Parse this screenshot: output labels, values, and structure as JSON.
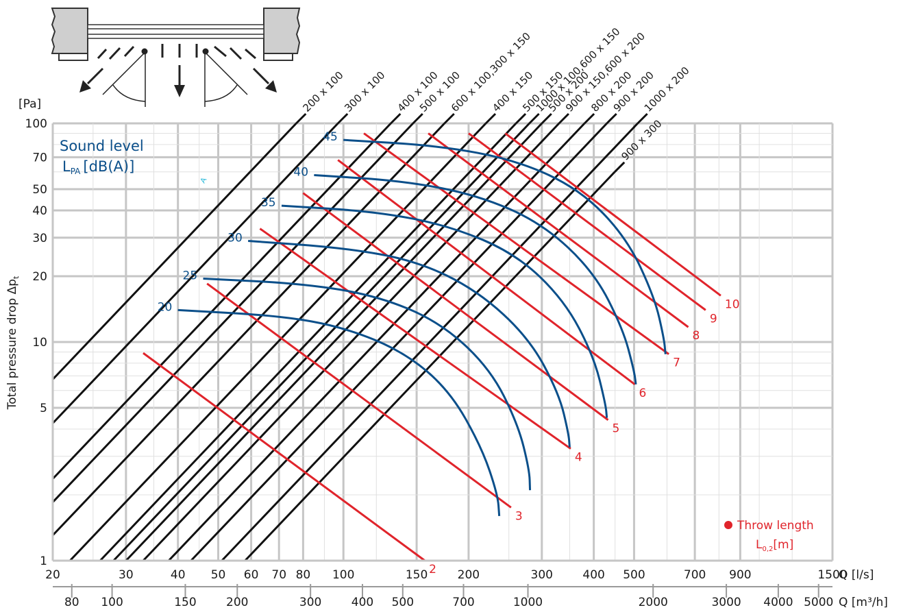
{
  "chart_data": {
    "type": "line",
    "xlabel": "Q [l/s]",
    "x2label": "Q [m³/h]",
    "ylabel": "Total pressure drop Δp",
    "ylabel_sub": "t",
    "yunit": "[Pa]",
    "x_scale": "log",
    "y_scale": "log",
    "xlim": [
      20,
      1500
    ],
    "ylim": [
      1,
      100
    ],
    "x_ticks": [
      20,
      30,
      40,
      50,
      60,
      70,
      80,
      100,
      150,
      200,
      300,
      400,
      500,
      700,
      900,
      1500
    ],
    "x_tick_labels": [
      "20",
      "30",
      "40",
      "50",
      "60",
      "70",
      "80",
      "100",
      "150",
      "200",
      "300",
      "400",
      "500",
      "700",
      "900",
      "1500"
    ],
    "x2_ticks": [
      80,
      100,
      150,
      200,
      300,
      400,
      500,
      700,
      1000,
      2000,
      3000,
      4000,
      5000
    ],
    "x2_tick_labels": [
      "80",
      "100",
      "150",
      "200",
      "300",
      "400",
      "500",
      "700",
      "1000",
      "2000",
      "3000",
      "4000",
      "5000"
    ],
    "y_ticks": [
      1,
      5,
      10,
      20,
      30,
      40,
      50,
      70,
      100
    ],
    "y_tick_labels": [
      "1",
      "5",
      "10",
      "20",
      "30",
      "40",
      "50",
      "70",
      "100"
    ],
    "grid": true,
    "size_lines": {
      "color": "#111111",
      "slope": 2,
      "labels": [
        "200 x 100",
        "300 x 100",
        "400 x 100",
        "500 x 100",
        "600 x 100,300 x 150",
        "400 x 150",
        "500 x 150",
        "1000 x 100,600 x 150",
        "500 x 200",
        "900 x 150,600 x 200",
        "800 x 200",
        "900 x 200",
        "1000 x 200",
        "900 x 300"
      ],
      "q_at_100pa": [
        77,
        97,
        130,
        147,
        175,
        220,
        260,
        280,
        300,
        330,
        380,
        430,
        510,
        580
      ]
    },
    "throw_length": {
      "label": "Throw length",
      "unit_label": "L",
      "unit_sub": "0,2",
      "unit_suffix": "[m]",
      "color": "#e0242b",
      "series": [
        {
          "name": "2",
          "from": [
            33,
            8.9
          ],
          "to": [
            157,
            1.0
          ]
        },
        {
          "name": "3",
          "from": [
            47,
            18.5
          ],
          "to": [
            253,
            1.75
          ]
        },
        {
          "name": "4",
          "from": [
            63,
            33
          ],
          "to": [
            352,
            3.25
          ]
        },
        {
          "name": "5",
          "from": [
            80,
            48
          ],
          "to": [
            433,
            4.4
          ]
        },
        {
          "name": "6",
          "from": [
            97,
            68
          ],
          "to": [
            502,
            6.4
          ]
        },
        {
          "name": "7",
          "from": [
            112,
            90
          ],
          "to": [
            606,
            8.8
          ]
        },
        {
          "name": "8",
          "from": [
            160,
            90
          ],
          "to": [
            675,
            11.7
          ]
        },
        {
          "name": "9",
          "from": [
            200,
            90
          ],
          "to": [
            743,
            14.0
          ]
        },
        {
          "name": "10",
          "from": [
            245,
            90
          ],
          "to": [
            808,
            16.3
          ]
        }
      ]
    },
    "sound_level": {
      "title": "Sound level",
      "unit_label": "L",
      "unit_sub": "PA",
      "unit_suffix": "[dB(A)]",
      "color": "#0b4f8a",
      "series": [
        {
          "name": "20",
          "x": [
            40,
            70,
            100,
            140,
            180,
            215,
            235,
            237
          ],
          "y": [
            14,
            13.2,
            11.7,
            9.0,
            6.0,
            3.3,
            2.0,
            1.6
          ]
        },
        {
          "name": "25",
          "x": [
            46,
            80,
            120,
            170,
            225,
            263,
            280,
            281
          ],
          "y": [
            19.5,
            18.5,
            16.3,
            12.4,
            7.6,
            4.2,
            2.6,
            2.1
          ]
        },
        {
          "name": "30",
          "x": [
            59,
            100,
            150,
            210,
            280,
            330,
            348,
            350
          ],
          "y": [
            29,
            27,
            23.5,
            17.2,
            10.4,
            5.8,
            3.8,
            3.3
          ]
        },
        {
          "name": "35",
          "x": [
            71,
            120,
            180,
            260,
            340,
            400,
            427,
            430
          ],
          "y": [
            42,
            39.5,
            34,
            25.3,
            15.5,
            8.6,
            5.2,
            4.5
          ]
        },
        {
          "name": "40",
          "x": [
            85,
            140,
            210,
            300,
            400,
            470,
            500,
            505
          ],
          "y": [
            58,
            54.5,
            47,
            35,
            21,
            11.5,
            7.4,
            6.4
          ]
        },
        {
          "name": "45",
          "x": [
            100,
            170,
            260,
            370,
            480,
            560,
            590,
            595
          ],
          "y": [
            84,
            79,
            68,
            50,
            30,
            16,
            10.4,
            8.8
          ]
        }
      ]
    },
    "stray_mark": "A"
  }
}
